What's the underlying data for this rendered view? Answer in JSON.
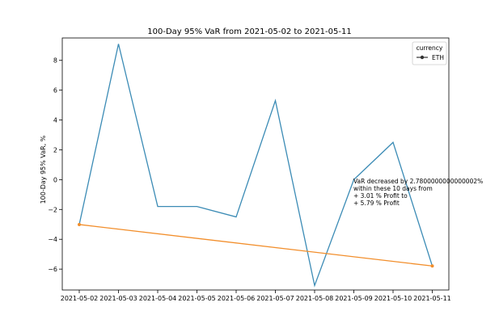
{
  "chart_data": {
    "type": "line",
    "title": "100-Day 95% VaR from 2021-05-02 to 2021-05-11",
    "xlabel": "",
    "ylabel": "100-Day 95% VaR, %",
    "categories": [
      "2021-05-02",
      "2021-05-03",
      "2021-05-04",
      "2021-05-05",
      "2021-05-06",
      "2021-05-07",
      "2021-05-08",
      "2021-05-09",
      "2021-05-10",
      "2021-05-11"
    ],
    "ylim": [
      -7.4,
      9.5
    ],
    "yticks": [
      -6,
      -4,
      -2,
      0,
      2,
      4,
      6,
      8
    ],
    "ytick_labels": [
      "−6",
      "−4",
      "−2",
      "0",
      "2",
      "4",
      "6",
      "8"
    ],
    "grid": false,
    "legend": {
      "title": "currency",
      "position": "top-right",
      "entries": [
        "ETH"
      ]
    },
    "series": [
      {
        "name": "ETH",
        "color": "#3b8bb5",
        "values": [
          -3.01,
          9.1,
          -1.8,
          -1.8,
          -2.5,
          5.3,
          -7.1,
          0.0,
          2.5,
          -5.79
        ]
      }
    ],
    "trend": {
      "color": "#f28e2b",
      "x_indices": [
        0,
        9
      ],
      "values": [
        -3.01,
        -5.79
      ]
    },
    "annotation": {
      "lines": [
        "VaR decreased by 2.7800000000000002%",
        "within these 10 days from",
        "+ 3.01 % Profit to",
        "+ 5.79 % Profit"
      ],
      "anchor_category": "2021-05-09",
      "anchor_value": 0.0
    }
  }
}
